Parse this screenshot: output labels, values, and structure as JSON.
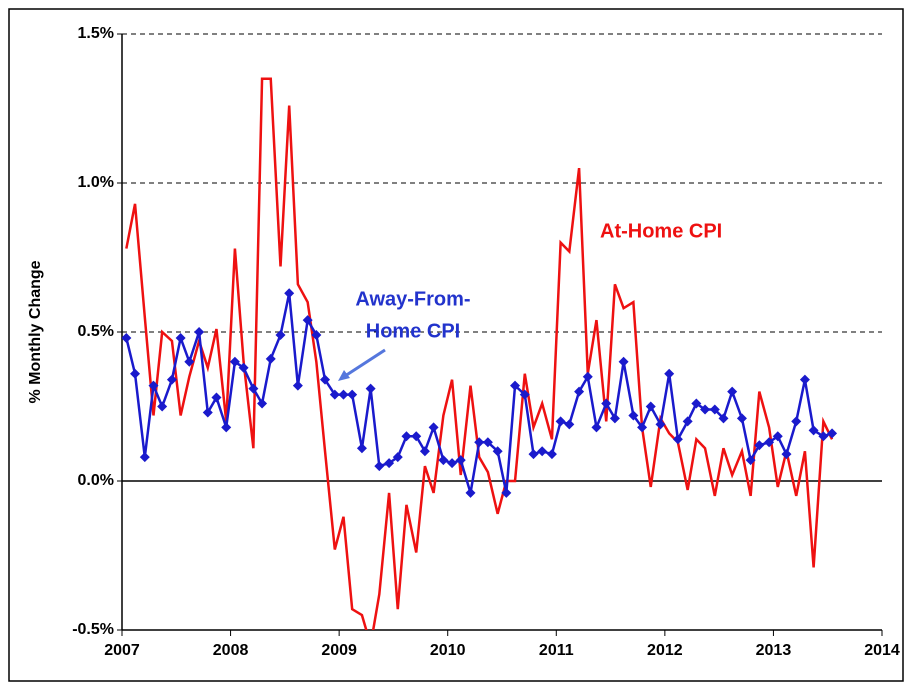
{
  "chart_data": {
    "type": "line",
    "y_axis_label": "% Monthly Change",
    "xlim": [
      2007,
      2014
    ],
    "xticks": [
      2007,
      2008,
      2009,
      2010,
      2011,
      2012,
      2013,
      2014
    ],
    "ylim": [
      -0.5,
      1.5
    ],
    "yticks": [
      {
        "value": -0.5,
        "label": "-0.5%"
      },
      {
        "value": 0,
        "label": "0.0%"
      },
      {
        "value": 0.5,
        "label": "0.5%"
      },
      {
        "value": 1.0,
        "label": "1.0%"
      },
      {
        "value": 1.5,
        "label": "1.5%"
      }
    ],
    "grid": true,
    "annotations": [
      {
        "lines": [
          "At-Home CPI"
        ],
        "color": "#ee1111"
      },
      {
        "lines": [
          "Away-From-",
          "Home CPI"
        ],
        "color": "#2233cc"
      }
    ],
    "x": [
      2007.04,
      2007.12,
      2007.21,
      2007.29,
      2007.37,
      2007.46,
      2007.54,
      2007.62,
      2007.71,
      2007.79,
      2007.87,
      2007.96,
      2008.04,
      2008.12,
      2008.21,
      2008.29,
      2008.37,
      2008.46,
      2008.54,
      2008.62,
      2008.71,
      2008.79,
      2008.87,
      2008.96,
      2009.04,
      2009.12,
      2009.21,
      2009.29,
      2009.37,
      2009.46,
      2009.54,
      2009.62,
      2009.71,
      2009.79,
      2009.87,
      2009.96,
      2010.04,
      2010.12,
      2010.21,
      2010.29,
      2010.37,
      2010.46,
      2010.54,
      2010.62,
      2010.71,
      2010.79,
      2010.87,
      2010.96,
      2011.04,
      2011.12,
      2011.21,
      2011.29,
      2011.37,
      2011.46,
      2011.54,
      2011.62,
      2011.71,
      2011.79,
      2011.87,
      2011.96,
      2012.04,
      2012.12,
      2012.21,
      2012.29,
      2012.37,
      2012.46,
      2012.54,
      2012.62,
      2012.71,
      2012.79,
      2012.87,
      2012.96,
      2013.04,
      2013.12,
      2013.21,
      2013.29,
      2013.37,
      2013.46,
      2013.54
    ],
    "series": [
      {
        "color": "#ee1111",
        "marker": false,
        "values": [
          0.78,
          0.93,
          0.55,
          0.22,
          0.5,
          0.47,
          0.22,
          0.35,
          0.47,
          0.38,
          0.51,
          0.2,
          0.78,
          0.4,
          0.11,
          1.35,
          1.35,
          0.72,
          1.26,
          0.66,
          0.6,
          0.4,
          0.1,
          -0.23,
          -0.12,
          -0.43,
          -0.45,
          -0.55,
          -0.38,
          -0.04,
          -0.43,
          -0.08,
          -0.24,
          0.05,
          -0.04,
          0.22,
          0.34,
          0.02,
          0.32,
          0.08,
          0.03,
          -0.11,
          0.0,
          0.0,
          0.36,
          0.18,
          0.26,
          0.14,
          0.8,
          0.77,
          1.05,
          0.36,
          0.54,
          0.2,
          0.66,
          0.58,
          0.6,
          0.18,
          -0.02,
          0.21,
          0.16,
          0.13,
          -0.03,
          0.14,
          0.11,
          -0.05,
          0.11,
          0.02,
          0.1,
          -0.05,
          0.3,
          0.18,
          -0.02,
          0.1,
          -0.05,
          0.1,
          -0.29,
          0.2,
          0.14
        ]
      },
      {
        "color": "#1a1acc",
        "marker": true,
        "values": [
          0.48,
          0.36,
          0.08,
          0.32,
          0.25,
          0.34,
          0.48,
          0.4,
          0.5,
          0.23,
          0.28,
          0.18,
          0.4,
          0.38,
          0.31,
          0.26,
          0.41,
          0.49,
          0.63,
          0.32,
          0.54,
          0.49,
          0.34,
          0.29,
          0.29,
          0.29,
          0.11,
          0.31,
          0.05,
          0.06,
          0.08,
          0.15,
          0.15,
          0.1,
          0.18,
          0.07,
          0.06,
          0.07,
          -0.04,
          0.13,
          0.13,
          0.1,
          -0.04,
          0.32,
          0.29,
          0.09,
          0.1,
          0.09,
          0.2,
          0.19,
          0.3,
          0.35,
          0.18,
          0.26,
          0.21,
          0.4,
          0.22,
          0.18,
          0.25,
          0.19,
          0.36,
          0.14,
          0.2,
          0.26,
          0.24,
          0.24,
          0.21,
          0.3,
          0.21,
          0.07,
          0.12,
          0.13,
          0.15,
          0.09,
          0.2,
          0.34,
          0.17,
          0.15,
          0.16
        ]
      }
    ]
  }
}
